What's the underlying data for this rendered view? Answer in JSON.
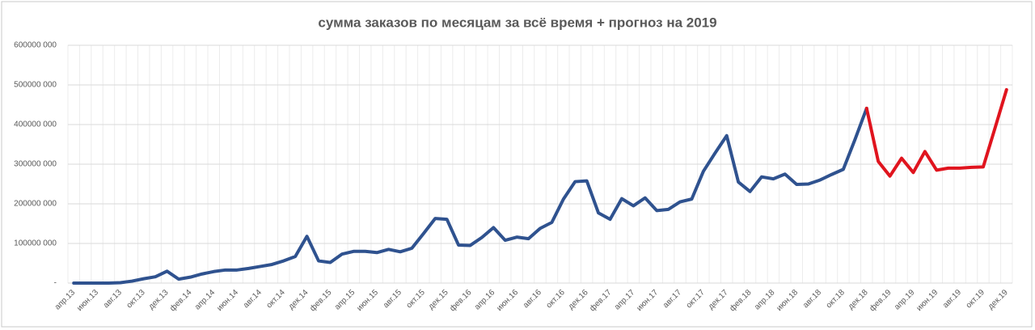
{
  "chart_data": {
    "type": "line",
    "title": "сумма заказов по месяцам за всё время + прогноз на 2019",
    "categories": [
      "апр.13",
      null,
      "июн.13",
      null,
      "авг.13",
      null,
      "окт.13",
      null,
      "дек.13",
      null,
      "фев.14",
      null,
      "апр.14",
      null,
      "июн.14",
      null,
      "авг.14",
      null,
      "окт.14",
      null,
      "дек.14",
      null,
      "фев.15",
      null,
      "апр.15",
      null,
      "июн.15",
      null,
      "авг.15",
      null,
      "окт.15",
      null,
      "дек.15",
      null,
      "фев.16",
      null,
      "апр.16",
      null,
      "июн.16",
      null,
      "авг.16",
      null,
      "окт.16",
      null,
      "дек.16",
      null,
      "фев.17",
      null,
      "апр.17",
      null,
      "июн.17",
      null,
      "авг.17",
      null,
      "окт.17",
      null,
      "дек.17",
      null,
      "фев.18",
      null,
      "апр.18",
      null,
      "июн.18",
      null,
      "авг.18",
      null,
      "окт.18",
      null,
      "дек.18",
      null,
      "фев.19",
      null,
      "апр.19",
      null,
      "июн.19",
      null,
      "авг.19",
      null,
      "окт.19",
      null,
      "дек.19"
    ],
    "series": [
      {
        "color": "#2f528f",
        "values": [
          0,
          0,
          0,
          0,
          1000000,
          5000000,
          11000000,
          16000000,
          30000000,
          10000000,
          15000000,
          23000000,
          29000000,
          33000000,
          33000000,
          37000000,
          42000000,
          47000000,
          56000000,
          67000000,
          118000000,
          56000000,
          52000000,
          73000000,
          80000000,
          80000000,
          77000000,
          85000000,
          79000000,
          88000000,
          125000000,
          163000000,
          161000000,
          96000000,
          95000000,
          115000000,
          140000000,
          108000000,
          116000000,
          112000000,
          138000000,
          153000000,
          212000000,
          256000000,
          258000000,
          177000000,
          161000000,
          213000000,
          195000000,
          215000000,
          183000000,
          186000000,
          205000000,
          212000000,
          282000000,
          328000000,
          372000000,
          255000000,
          231000000,
          268000000,
          263000000,
          275000000,
          249000000,
          250000000,
          260000000,
          274000000,
          287000000,
          362000000,
          441000000,
          null,
          null,
          null,
          null,
          null,
          null,
          null,
          null,
          null,
          null,
          null,
          null
        ]
      },
      {
        "color": "#e0141e",
        "values": [
          null,
          null,
          null,
          null,
          null,
          null,
          null,
          null,
          null,
          null,
          null,
          null,
          null,
          null,
          null,
          null,
          null,
          null,
          null,
          null,
          null,
          null,
          null,
          null,
          null,
          null,
          null,
          null,
          null,
          null,
          null,
          null,
          null,
          null,
          null,
          null,
          null,
          null,
          null,
          null,
          null,
          null,
          null,
          null,
          null,
          null,
          null,
          null,
          null,
          null,
          null,
          null,
          null,
          null,
          null,
          null,
          null,
          null,
          null,
          null,
          null,
          null,
          null,
          null,
          null,
          null,
          null,
          null,
          441000000,
          307000000,
          270000000,
          315000000,
          279000000,
          332000000,
          285000000,
          290000000,
          290000000,
          292000000,
          293000000,
          390000000,
          488000000
        ]
      }
    ],
    "ylim": [
      0,
      600000000
    ],
    "yticks": [
      {
        "value": 0,
        "label": "-"
      },
      {
        "value": 100000000,
        "label": "100000 000"
      },
      {
        "value": 200000000,
        "label": "200000 000"
      },
      {
        "value": 300000000,
        "label": "300000 000"
      },
      {
        "value": 400000000,
        "label": "400000 000"
      },
      {
        "value": 500000000,
        "label": "500000 000"
      },
      {
        "value": 600000000,
        "label": "600000 000"
      }
    ],
    "grid": true
  }
}
